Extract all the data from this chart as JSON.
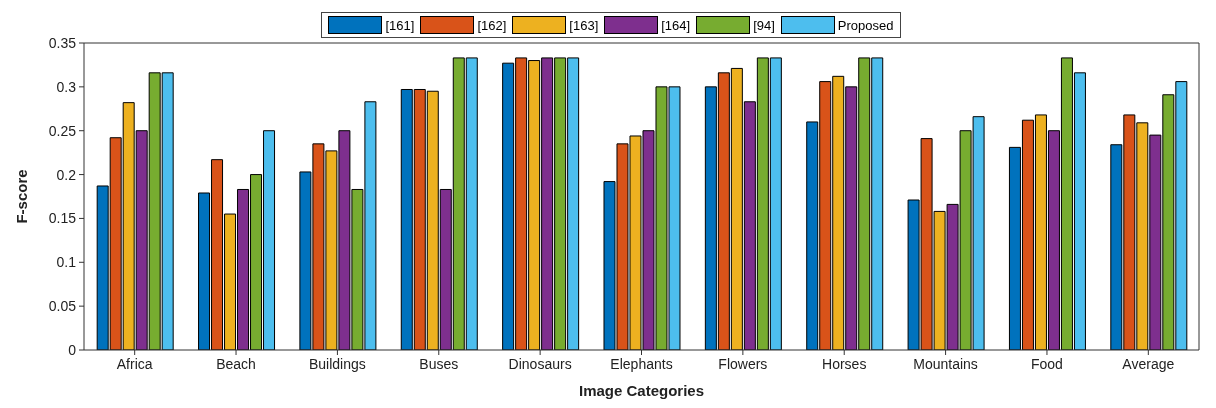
{
  "chart_data": {
    "type": "bar",
    "xlabel": "Image Categories",
    "ylabel": "F-score",
    "categories": [
      "Africa",
      "Beach",
      "Buildings",
      "Buses",
      "Dinosaurs",
      "Elephants",
      "Flowers",
      "Horses",
      "Mountains",
      "Food",
      "Average"
    ],
    "series": [
      {
        "name": "[161]",
        "color": "#0072bd",
        "values": [
          0.187,
          0.179,
          0.203,
          0.297,
          0.327,
          0.192,
          0.3,
          0.26,
          0.171,
          0.231,
          0.234
        ]
      },
      {
        "name": "[162]",
        "color": "#d95319",
        "values": [
          0.242,
          0.217,
          0.235,
          0.297,
          0.333,
          0.235,
          0.316,
          0.306,
          0.241,
          0.262,
          0.268
        ]
      },
      {
        "name": "[163]",
        "color": "#edb120",
        "values": [
          0.282,
          0.155,
          0.227,
          0.295,
          0.33,
          0.244,
          0.321,
          0.312,
          0.158,
          0.268,
          0.259
        ]
      },
      {
        "name": "[164]",
        "color": "#7e2f8e",
        "values": [
          0.25,
          0.183,
          0.25,
          0.183,
          0.333,
          0.25,
          0.283,
          0.3,
          0.166,
          0.25,
          0.245
        ]
      },
      {
        "name": "[94]",
        "color": "#77ac30",
        "values": [
          0.316,
          0.2,
          0.183,
          0.333,
          0.333,
          0.3,
          0.333,
          0.333,
          0.25,
          0.333,
          0.291
        ]
      },
      {
        "name": "Proposed",
        "color": "#4dbeee",
        "values": [
          0.316,
          0.25,
          0.283,
          0.333,
          0.333,
          0.3,
          0.333,
          0.333,
          0.266,
          0.316,
          0.306
        ]
      }
    ],
    "ylim": [
      0,
      0.35
    ],
    "yticks": [
      0,
      0.05,
      0.1,
      0.15,
      0.2,
      0.25,
      0.3,
      0.35
    ],
    "grid": false,
    "legend": "top"
  }
}
